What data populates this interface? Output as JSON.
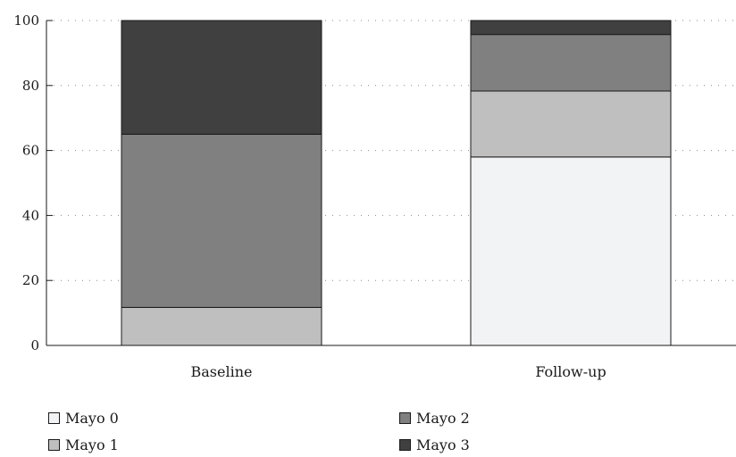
{
  "chart_data": {
    "type": "bar",
    "stacked": true,
    "categories": [
      "Baseline",
      "Follow-up"
    ],
    "series": [
      {
        "name": "Mayo 0",
        "values": [
          0,
          58
        ],
        "color": "#f2f3f5"
      },
      {
        "name": "Mayo 1",
        "values": [
          11.7,
          20.3
        ],
        "color": "#bfbfbf"
      },
      {
        "name": "Mayo 2",
        "values": [
          53.3,
          17.4
        ],
        "color": "#808080"
      },
      {
        "name": "Mayo 3",
        "values": [
          35,
          4.3
        ],
        "color": "#404040"
      }
    ],
    "ylim": [
      0,
      100
    ],
    "yticks": [
      "0",
      "20",
      "40",
      "60",
      "80",
      "100"
    ],
    "grid": true,
    "legend_position": "bottom"
  }
}
